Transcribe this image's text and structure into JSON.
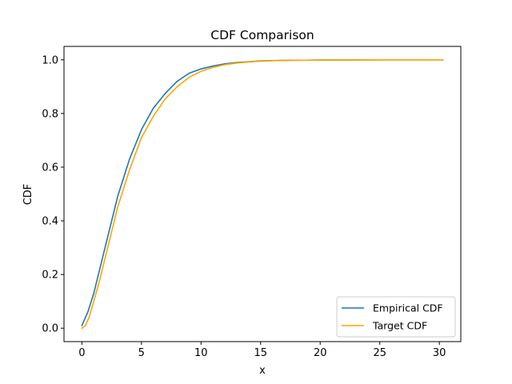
{
  "chart_data": {
    "type": "line",
    "title": "CDF Comparison",
    "xlabel": "x",
    "ylabel": "CDF",
    "xlim": [
      -1.5,
      31.8
    ],
    "ylim": [
      -0.05,
      1.05
    ],
    "xticks": [
      0,
      5,
      10,
      15,
      20,
      25,
      30
    ],
    "yticks": [
      0.0,
      0.2,
      0.4,
      0.6,
      0.8,
      1.0
    ],
    "xtick_labels": [
      "0",
      "5",
      "10",
      "15",
      "20",
      "25",
      "30"
    ],
    "ytick_labels": [
      "0.0",
      "0.2",
      "0.4",
      "0.6",
      "0.8",
      "1.0"
    ],
    "grid": false,
    "legend_placement": "lower-right",
    "series": [
      {
        "name": "Empirical CDF",
        "color": "#1f77b4",
        "x": [
          0,
          0.5,
          1,
          1.5,
          2,
          2.5,
          3,
          3.5,
          4,
          5,
          6,
          7,
          8,
          9,
          10,
          11,
          12,
          13,
          14,
          15,
          17,
          20,
          25,
          30.3
        ],
        "y": [
          0.01,
          0.06,
          0.13,
          0.22,
          0.31,
          0.4,
          0.49,
          0.56,
          0.63,
          0.74,
          0.82,
          0.875,
          0.92,
          0.95,
          0.966,
          0.977,
          0.985,
          0.99,
          0.993,
          0.996,
          0.998,
          0.999,
          1.0,
          1.0
        ]
      },
      {
        "name": "Target CDF",
        "color": "#ffa500",
        "x": [
          0,
          0.3,
          0.6,
          1,
          1.5,
          2,
          2.5,
          3,
          3.5,
          4,
          5,
          6,
          7,
          8,
          9,
          10,
          11,
          12,
          13,
          14,
          15,
          17,
          20,
          25,
          30.3
        ],
        "y": [
          0.0,
          0.01,
          0.04,
          0.1,
          0.18,
          0.27,
          0.36,
          0.45,
          0.52,
          0.59,
          0.71,
          0.79,
          0.855,
          0.9,
          0.935,
          0.957,
          0.972,
          0.982,
          0.988,
          0.992,
          0.995,
          0.998,
          0.999,
          1.0,
          1.0
        ]
      }
    ]
  }
}
